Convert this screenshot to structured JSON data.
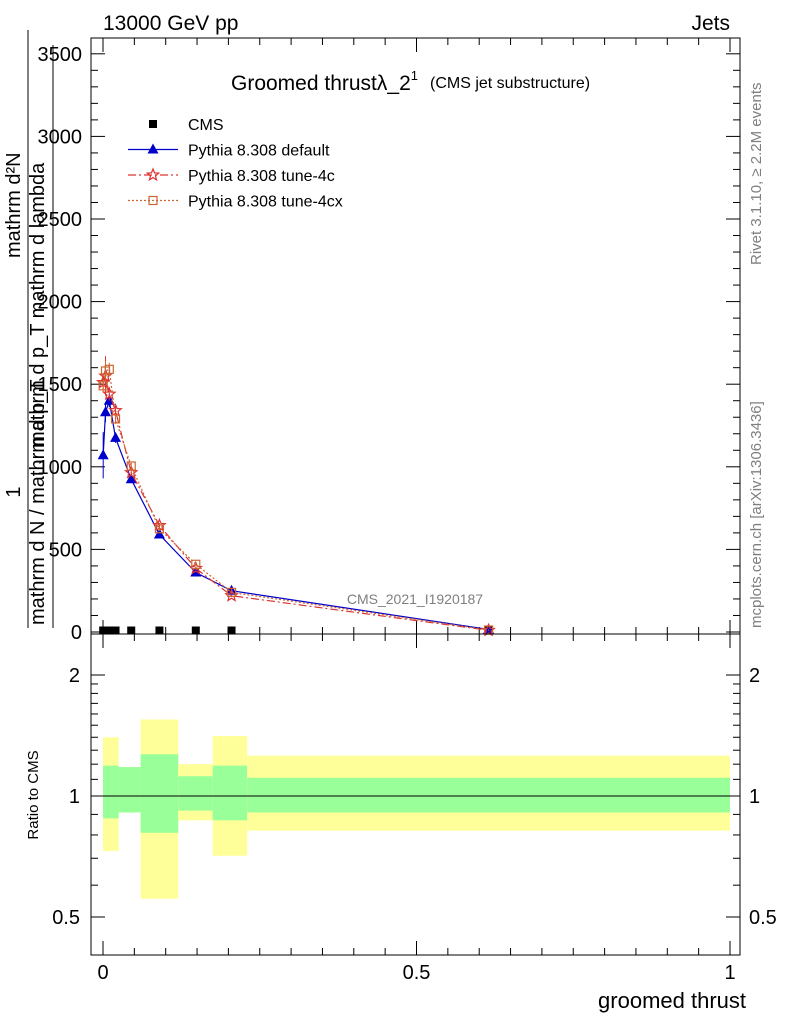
{
  "header": {
    "left": "13000 GeV pp",
    "right": "Jets"
  },
  "side_labels": {
    "rivet": "Rivet 3.1.10, ≥ 2.2M events",
    "mcplots": "mcplots.cern.ch [arXiv:1306.3436]"
  },
  "watermark": "CMS_2021_I1920187",
  "chart_data": [
    {
      "type": "line",
      "title": "Groomed thrustλ_2",
      "title_sup": "1",
      "title_suffix": "(CMS jet substructure)",
      "ylabel_numerator": "mathrm d²N",
      "ylabel_denominator": "mathrm d p_T mathrm d lambda",
      "ylabel_prefix_num": "1",
      "ylabel_prefix_den": "mathrm d N / mathrm d p_T",
      "xlim": [
        0,
        1
      ],
      "ylim": [
        0,
        3600
      ],
      "yticks": [
        0,
        500,
        1000,
        1500,
        2000,
        2500,
        3000,
        3500
      ],
      "ytick_labels": [
        "0",
        "500",
        "1000",
        "1500",
        "2000",
        "2500",
        "3000",
        "3500"
      ],
      "legend_position": "top-left",
      "series": [
        {
          "name": "CMS",
          "color": "#000000",
          "marker": "square",
          "x": [
            0.0003,
            0.004,
            0.01,
            0.02,
            0.045,
            0.09,
            0.148,
            0.205,
            0.615
          ],
          "y": [
            9,
            9,
            9,
            9,
            9,
            9,
            9,
            9,
            9
          ]
        },
        {
          "name": "Pythia 8.308 default",
          "color": "#0000cc",
          "marker": "triangle",
          "x": [
            0.0003,
            0.004,
            0.01,
            0.02,
            0.045,
            0.09,
            0.148,
            0.205,
            0.615
          ],
          "y": [
            1070,
            1330,
            1400,
            1175,
            925,
            590,
            360,
            250,
            15
          ],
          "yerr": [
            140,
            60,
            40,
            30,
            20,
            15,
            10,
            8,
            3
          ]
        },
        {
          "name": "Pythia 8.308 tune-4c",
          "color": "#dd3333",
          "marker": "star",
          "x": [
            0.0003,
            0.004,
            0.01,
            0.02,
            0.045,
            0.09,
            0.148,
            0.205,
            0.615
          ],
          "y": [
            1510,
            1550,
            1440,
            1340,
            965,
            645,
            385,
            220,
            10
          ],
          "yerr": [
            40,
            120,
            40,
            30,
            20,
            15,
            10,
            8,
            3
          ]
        },
        {
          "name": "Pythia 8.308 tune-4cx",
          "color": "#cc6633",
          "marker": "open-square",
          "x": [
            0.0003,
            0.004,
            0.01,
            0.02,
            0.045,
            0.09,
            0.148,
            0.205,
            0.615
          ],
          "y": [
            1490,
            1580,
            1590,
            1290,
            1005,
            625,
            410,
            240,
            12
          ],
          "yerr": [
            40,
            60,
            40,
            30,
            20,
            15,
            10,
            8,
            3
          ]
        }
      ]
    },
    {
      "type": "area",
      "ylabel": "Ratio to CMS",
      "xlabel": "groomed thrust",
      "xlim": [
        0,
        1
      ],
      "ylim": [
        0.4,
        2.3
      ],
      "yscale": "log",
      "yticks": [
        0.5,
        1,
        2
      ],
      "ytick_labels": [
        "0.5",
        "1",
        "2"
      ],
      "xticks": [
        0,
        0.5,
        1
      ],
      "xtick_labels": [
        "0",
        "0.5",
        "1"
      ],
      "bins": [
        {
          "x0": 0.0,
          "x1": 0.025,
          "inner": [
            0.88,
            1.19
          ],
          "outer": [
            0.73,
            1.4
          ]
        },
        {
          "x0": 0.025,
          "x1": 0.06,
          "inner": [
            0.91,
            1.18
          ],
          "outer": [
            0.91,
            1.18
          ]
        },
        {
          "x0": 0.06,
          "x1": 0.12,
          "inner": [
            0.81,
            1.27
          ],
          "outer": [
            0.555,
            1.55
          ]
        },
        {
          "x0": 0.12,
          "x1": 0.175,
          "inner": [
            0.92,
            1.12
          ],
          "outer": [
            0.87,
            1.2
          ]
        },
        {
          "x0": 0.175,
          "x1": 0.23,
          "inner": [
            0.87,
            1.19
          ],
          "outer": [
            0.71,
            1.41
          ]
        },
        {
          "x0": 0.23,
          "x1": 1.0,
          "inner": [
            0.91,
            1.11
          ],
          "outer": [
            0.82,
            1.26
          ]
        }
      ]
    }
  ]
}
